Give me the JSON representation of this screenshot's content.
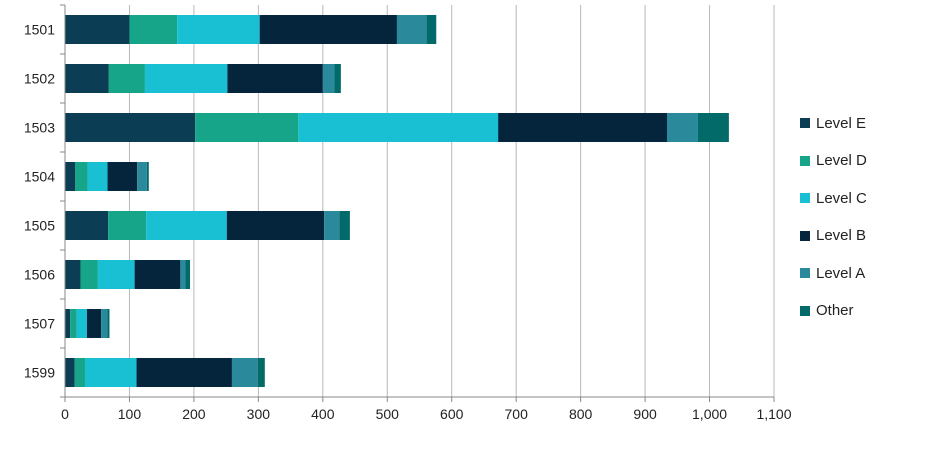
{
  "chart_data": {
    "type": "bar",
    "orientation": "horizontal",
    "stacked": true,
    "categories": [
      "1501",
      "1502",
      "1503",
      "1504",
      "1505",
      "1506",
      "1507",
      "1599"
    ],
    "series": [
      {
        "name": "Level E",
        "color": "#0b3d54",
        "values": [
          100,
          68,
          202,
          16,
          67,
          24,
          8,
          15
        ]
      },
      {
        "name": "Level D",
        "color": "#17a58a",
        "values": [
          74,
          56,
          160,
          19,
          59,
          27,
          10,
          16
        ]
      },
      {
        "name": "Level C",
        "color": "#19c0d4",
        "values": [
          128,
          128,
          310,
          31,
          125,
          57,
          16,
          80
        ]
      },
      {
        "name": "Level B",
        "color": "#04253b",
        "values": [
          213,
          148,
          262,
          46,
          151,
          71,
          22,
          148
        ]
      },
      {
        "name": "Level A",
        "color": "#2a8a9c",
        "values": [
          46,
          18,
          48,
          15,
          24,
          8,
          10,
          40
        ]
      },
      {
        "name": "Other",
        "color": "#036a6a",
        "values": [
          15,
          10,
          48,
          3,
          16,
          7,
          3,
          11
        ]
      }
    ],
    "xlim": [
      0,
      1100
    ],
    "xticks": [
      0,
      100,
      200,
      300,
      400,
      500,
      600,
      700,
      800,
      900,
      1000,
      1100
    ],
    "xtick_labels": [
      "0",
      "100",
      "200",
      "300",
      "400",
      "500",
      "600",
      "700",
      "800",
      "900",
      "1,000",
      "1,100"
    ],
    "grid": true,
    "legend_position": "right",
    "title": "",
    "xlabel": "",
    "ylabel": ""
  }
}
